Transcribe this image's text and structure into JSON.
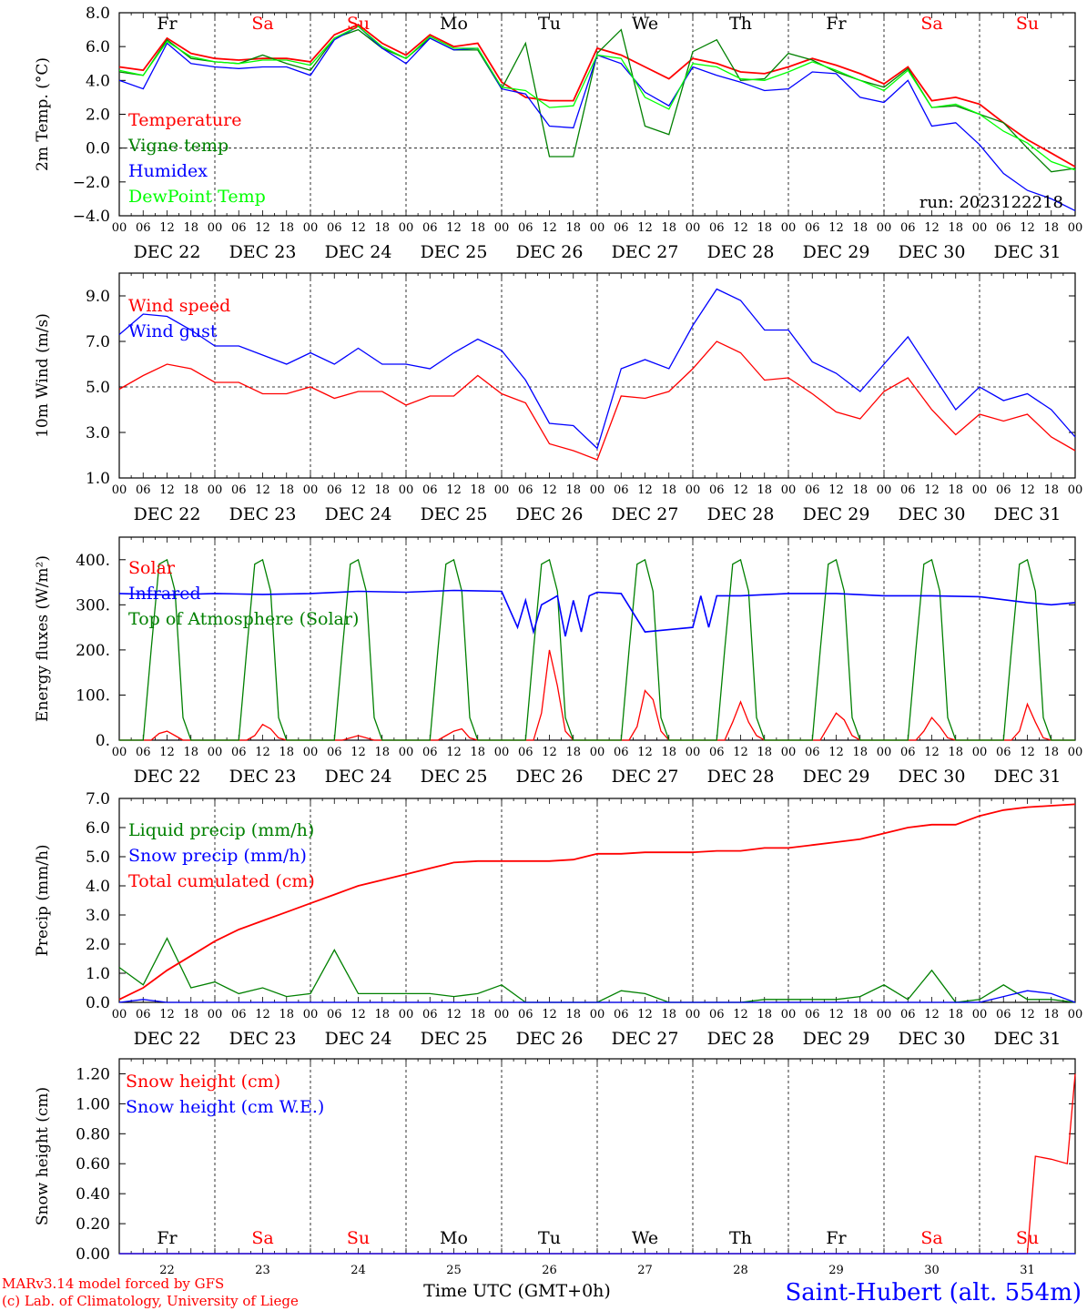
{
  "footer": {
    "credit1": "MARv3.14 model forced by GFS",
    "credit2": "(c) Lab. of Climatology, University of Liege",
    "xlabel": "Time UTC (GMT+0h)",
    "station": "Saint-Hubert (alt. 554m)"
  },
  "colors": {
    "red": "#ff0000",
    "green": "#008000",
    "blue": "#0000ff",
    "lime": "#00ff00",
    "purple": "#b000b0"
  },
  "days": [
    "Fr",
    "Sa",
    "Su",
    "Mo",
    "Tu",
    "We",
    "Th",
    "Fr",
    "Sa",
    "Su"
  ],
  "weekend_days": [
    "Sa",
    "Su"
  ],
  "dates": [
    "DEC 22",
    "DEC 23",
    "DEC 24",
    "DEC 25",
    "DEC 26",
    "DEC 27",
    "DEC 28",
    "DEC 29",
    "DEC 30",
    "DEC 31"
  ],
  "day_numbers": [
    "22",
    "23",
    "24",
    "25",
    "26",
    "27",
    "28",
    "29",
    "30",
    "31"
  ],
  "hour_ticks": [
    "00",
    "06",
    "12",
    "18"
  ],
  "chart_data": [
    {
      "type": "line",
      "ylabel": "2m Temp. (°C)",
      "ylim": [
        -4,
        8
      ],
      "yticks": [
        "8.0",
        "6.0",
        "4.0",
        "2.0",
        "0.0",
        "−2.0",
        "−4.0"
      ],
      "ytick_values": [
        8,
        6,
        4,
        2,
        0,
        -2,
        -4
      ],
      "ref_line": 0,
      "run_label": "run: 2023122218",
      "x_hours": [
        0,
        6,
        12,
        18,
        24,
        30,
        36,
        42,
        48,
        54,
        60,
        66,
        72,
        78,
        84,
        90,
        96,
        102,
        108,
        114,
        120,
        126,
        132,
        138,
        144,
        150,
        156,
        162,
        168,
        174,
        180,
        186,
        192,
        198,
        204,
        210,
        216,
        222,
        228,
        234,
        240
      ],
      "series": [
        {
          "name": "Temperature",
          "color": "red",
          "values": [
            4.8,
            4.6,
            6.5,
            5.6,
            5.3,
            5.2,
            5.3,
            5.3,
            5.1,
            6.7,
            7.3,
            6.2,
            5.5,
            6.7,
            6.0,
            6.2,
            3.9,
            3.0,
            2.8,
            2.8,
            5.9,
            5.5,
            4.8,
            4.1,
            5.3,
            5.0,
            4.5,
            4.4,
            4.8,
            5.3,
            4.9,
            4.4,
            3.8,
            4.8,
            2.8,
            3.0,
            2.6,
            1.5,
            0.5,
            -0.3,
            -1.1
          ]
        },
        {
          "name": "Vigne temp",
          "color": "green",
          "values": [
            4.5,
            4.3,
            6.4,
            5.3,
            5.1,
            5.0,
            5.5,
            5.0,
            4.6,
            6.5,
            7.0,
            5.9,
            5.3,
            6.5,
            5.8,
            5.8,
            3.5,
            6.2,
            -0.5,
            -0.5,
            5.6,
            7.0,
            1.3,
            0.8,
            5.7,
            6.4,
            4.0,
            4.1,
            5.6,
            5.2,
            4.5,
            4.0,
            3.6,
            4.7,
            2.4,
            2.5,
            2.0,
            1.5,
            0.0,
            -1.4,
            -1.2
          ]
        },
        {
          "name": "Humidex",
          "color": "blue",
          "values": [
            4.0,
            3.5,
            6.2,
            5.0,
            4.8,
            4.7,
            4.8,
            4.8,
            4.3,
            6.4,
            7.2,
            5.9,
            5.0,
            6.5,
            5.8,
            5.9,
            3.5,
            3.2,
            1.3,
            1.2,
            5.5,
            5.0,
            3.3,
            2.5,
            4.8,
            4.3,
            3.9,
            3.4,
            3.5,
            4.5,
            4.4,
            3.0,
            2.7,
            4.0,
            1.3,
            1.5,
            0.2,
            -1.5,
            -2.5,
            -3.0,
            -3.7
          ]
        },
        {
          "name": "DewPoint Temp",
          "color": "lime",
          "values": [
            4.6,
            4.3,
            6.3,
            5.4,
            5.1,
            5.0,
            5.2,
            5.2,
            4.9,
            6.5,
            7.2,
            6.0,
            5.3,
            6.6,
            5.9,
            5.9,
            3.6,
            3.4,
            2.4,
            2.5,
            5.5,
            5.3,
            3.0,
            2.3,
            5.0,
            4.8,
            4.1,
            4.0,
            4.5,
            5.1,
            4.6,
            4.0,
            3.4,
            4.6,
            2.4,
            2.6,
            2.0,
            1.0,
            0.3,
            -0.8,
            -1.3
          ]
        }
      ]
    },
    {
      "type": "line",
      "ylabel": "10m Wind (m/s)",
      "ylim": [
        1,
        10
      ],
      "yticks": [
        "9.0",
        "7.0",
        "5.0",
        "3.0",
        "1.0"
      ],
      "ytick_values": [
        9,
        7,
        5,
        3,
        1
      ],
      "ref_line": 5,
      "x_hours": [
        0,
        6,
        12,
        18,
        24,
        30,
        36,
        42,
        48,
        54,
        60,
        66,
        72,
        78,
        84,
        90,
        96,
        102,
        108,
        114,
        120,
        126,
        132,
        138,
        144,
        150,
        156,
        162,
        168,
        174,
        180,
        186,
        192,
        198,
        204,
        210,
        216,
        222,
        228,
        234,
        240
      ],
      "series": [
        {
          "name": "Wind speed",
          "color": "red",
          "values": [
            4.9,
            5.5,
            6.0,
            5.8,
            5.2,
            5.2,
            4.7,
            4.7,
            5.0,
            4.5,
            4.8,
            4.8,
            4.2,
            4.6,
            4.6,
            5.5,
            4.7,
            4.3,
            2.5,
            2.2,
            1.8,
            4.6,
            4.5,
            4.8,
            5.8,
            7.0,
            6.5,
            5.3,
            5.4,
            4.7,
            3.9,
            3.6,
            4.8,
            5.4,
            4.0,
            2.9,
            3.8,
            3.5,
            3.8,
            2.8,
            2.2
          ]
        },
        {
          "name": "Wind gust",
          "color": "blue",
          "values": [
            7.3,
            8.2,
            8.1,
            7.5,
            6.8,
            6.8,
            6.4,
            6.0,
            6.5,
            6.0,
            6.7,
            6.0,
            6.0,
            5.8,
            6.5,
            7.1,
            6.6,
            5.3,
            3.4,
            3.3,
            2.3,
            5.8,
            6.2,
            5.8,
            7.7,
            9.3,
            8.8,
            7.5,
            7.5,
            6.1,
            5.6,
            4.8,
            6.0,
            7.2,
            5.6,
            4.0,
            5.0,
            4.4,
            4.7,
            4.0,
            2.8
          ]
        }
      ]
    },
    {
      "type": "line",
      "ylabel": "Energy fluxes (W/m²)",
      "ylim": [
        0,
        450
      ],
      "yticks": [
        "400.",
        "300.",
        "200.",
        "100.",
        "0."
      ],
      "ytick_values": [
        400,
        300,
        200,
        100,
        0
      ],
      "x_hours": [
        0,
        6,
        8,
        10,
        12,
        14,
        16,
        18,
        24,
        30,
        32,
        34,
        36,
        38,
        40,
        42,
        48,
        54,
        56,
        58,
        60,
        62,
        64,
        66,
        72,
        78,
        80,
        82,
        84,
        86,
        88,
        90,
        96,
        102,
        104,
        106,
        108,
        110,
        112,
        114,
        120,
        126,
        128,
        130,
        132,
        134,
        136,
        138,
        144,
        150,
        152,
        154,
        156,
        158,
        160,
        162,
        168,
        174,
        176,
        178,
        180,
        182,
        184,
        186,
        192,
        198,
        200,
        202,
        204,
        206,
        208,
        210,
        216,
        222,
        224,
        226,
        228,
        230,
        232,
        234,
        240
      ],
      "series": [
        {
          "name": "Solar",
          "color": "red",
          "values": [
            0,
            0,
            0,
            15,
            20,
            10,
            0,
            0,
            0,
            0,
            0,
            10,
            35,
            25,
            5,
            0,
            0,
            0,
            0,
            5,
            10,
            5,
            0,
            0,
            0,
            0,
            0,
            10,
            20,
            25,
            5,
            0,
            0,
            0,
            0,
            60,
            200,
            120,
            20,
            0,
            0,
            0,
            0,
            30,
            110,
            90,
            20,
            0,
            0,
            0,
            0,
            40,
            85,
            40,
            10,
            0,
            0,
            0,
            0,
            30,
            60,
            45,
            10,
            0,
            0,
            0,
            0,
            20,
            50,
            30,
            5,
            0,
            0,
            0,
            0,
            20,
            80,
            40,
            5,
            0,
            0
          ]
        },
        {
          "name": "Top of Atmosphere (Solar)",
          "color": "green",
          "values": [
            0,
            0,
            200,
            390,
            400,
            330,
            50,
            0,
            0,
            0,
            200,
            390,
            400,
            330,
            50,
            0,
            0,
            0,
            200,
            390,
            400,
            330,
            50,
            0,
            0,
            0,
            200,
            390,
            400,
            330,
            50,
            0,
            0,
            0,
            200,
            390,
            400,
            330,
            50,
            0,
            0,
            0,
            200,
            390,
            400,
            330,
            50,
            0,
            0,
            0,
            200,
            390,
            400,
            330,
            50,
            0,
            0,
            0,
            200,
            390,
            400,
            330,
            50,
            0,
            0,
            0,
            200,
            390,
            400,
            330,
            50,
            0,
            0,
            0,
            200,
            390,
            400,
            330,
            50,
            0,
            0
          ]
        }
      ],
      "infrared": {
        "name": "Infrared",
        "color": "blue",
        "x_hours": [
          0,
          12,
          24,
          36,
          48,
          60,
          72,
          84,
          96,
          100,
          102,
          104,
          106,
          108,
          110,
          112,
          114,
          116,
          118,
          120,
          126,
          132,
          138,
          144,
          146,
          148,
          150,
          156,
          168,
          180,
          192,
          204,
          216,
          228,
          234,
          240
        ],
        "values": [
          325,
          322,
          325,
          323,
          325,
          330,
          328,
          332,
          330,
          250,
          310,
          240,
          300,
          310,
          320,
          230,
          310,
          240,
          320,
          328,
          325,
          240,
          245,
          250,
          320,
          250,
          320,
          320,
          325,
          325,
          320,
          320,
          318,
          305,
          300,
          305
        ]
      }
    },
    {
      "type": "line",
      "ylabel": "Precip (mm/h)",
      "ylim": [
        0,
        7
      ],
      "yticks": [
        "7.0",
        "6.0",
        "5.0",
        "4.0",
        "3.0",
        "2.0",
        "1.0",
        "0.0"
      ],
      "ytick_values": [
        7,
        6,
        5,
        4,
        3,
        2,
        1,
        0
      ],
      "x_hours": [
        0,
        6,
        12,
        18,
        24,
        30,
        36,
        42,
        48,
        54,
        60,
        66,
        72,
        78,
        84,
        90,
        96,
        102,
        108,
        114,
        120,
        126,
        132,
        138,
        144,
        150,
        156,
        162,
        168,
        174,
        180,
        186,
        192,
        198,
        204,
        210,
        216,
        222,
        228,
        234,
        240
      ],
      "series": [
        {
          "name": "Liquid precip (mm/h)",
          "color": "green",
          "values": [
            1.2,
            0.6,
            2.2,
            0.5,
            0.7,
            0.3,
            0.5,
            0.2,
            0.3,
            1.8,
            0.3,
            0.3,
            0.3,
            0.3,
            0.2,
            0.3,
            0.6,
            0.0,
            0.0,
            0.0,
            0.0,
            0.4,
            0.3,
            0.0,
            0.0,
            0.0,
            0.0,
            0.1,
            0.1,
            0.1,
            0.1,
            0.2,
            0.6,
            0.1,
            1.1,
            0.0,
            0.1,
            0.6,
            0.1,
            0.1,
            0.0
          ]
        },
        {
          "name": "Snow precip (mm/h)",
          "color": "blue",
          "values": [
            0.0,
            0.1,
            0.0,
            0.0,
            0.0,
            0.0,
            0.0,
            0.0,
            0.0,
            0.0,
            0.0,
            0.0,
            0.0,
            0.0,
            0.0,
            0.0,
            0.0,
            0.0,
            0.0,
            0.0,
            0.0,
            0.0,
            0.0,
            0.0,
            0.0,
            0.0,
            0.0,
            0.0,
            0.0,
            0.0,
            0.0,
            0.0,
            0.0,
            0.0,
            0.0,
            0.0,
            0.0,
            0.2,
            0.4,
            0.3,
            0.0
          ]
        },
        {
          "name": "Total cumulated (cm)",
          "color": "red",
          "values": [
            0.1,
            0.5,
            1.1,
            1.6,
            2.1,
            2.5,
            2.8,
            3.1,
            3.4,
            3.7,
            4.0,
            4.2,
            4.4,
            4.6,
            4.8,
            4.85,
            4.85,
            4.85,
            4.85,
            4.9,
            5.1,
            5.1,
            5.15,
            5.15,
            5.15,
            5.2,
            5.2,
            5.3,
            5.3,
            5.4,
            5.5,
            5.6,
            5.8,
            6.0,
            6.1,
            6.1,
            6.4,
            6.6,
            6.7,
            6.75,
            6.8
          ]
        }
      ]
    },
    {
      "type": "line",
      "ylabel": "Snow height (cm)",
      "ylim": [
        0,
        1.3
      ],
      "yticks": [
        "1.20",
        "1.00",
        "0.80",
        "0.60",
        "0.40",
        "0.20",
        "0.00"
      ],
      "ytick_values": [
        1.2,
        1.0,
        0.8,
        0.6,
        0.4,
        0.2,
        0.0
      ],
      "x_hours": [
        0,
        24,
        48,
        72,
        96,
        120,
        144,
        168,
        192,
        216,
        228,
        230,
        234,
        238,
        240
      ],
      "series": [
        {
          "name": "Snow height (cm)",
          "color": "red",
          "values": [
            0,
            0,
            0,
            0,
            0,
            0,
            0,
            0,
            0,
            0,
            0,
            0.65,
            0.63,
            0.6,
            1.2
          ]
        },
        {
          "name": "Snow height (cm W.E.)",
          "color": "blue",
          "values": [
            0,
            0,
            0,
            0,
            0,
            0,
            0,
            0,
            0,
            0,
            0,
            0,
            0,
            0,
            0
          ]
        }
      ]
    }
  ]
}
